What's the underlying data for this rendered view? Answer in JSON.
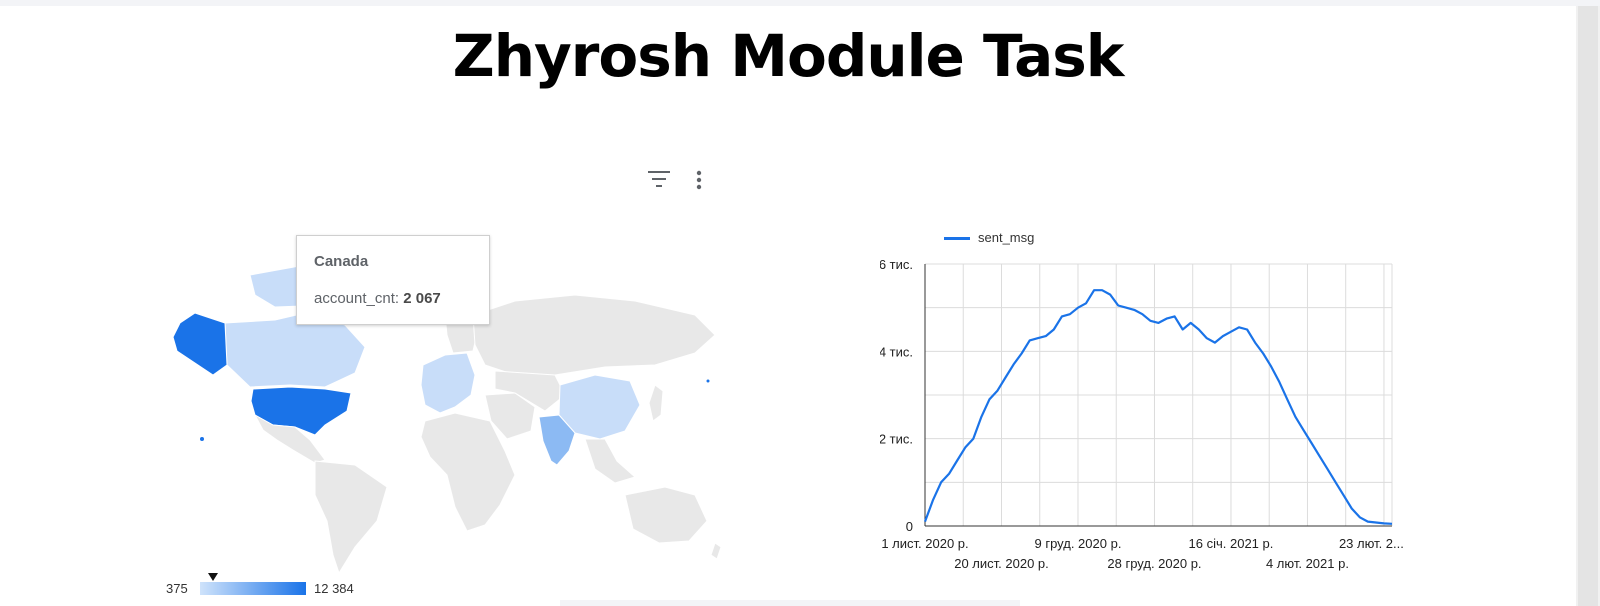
{
  "page": {
    "title": "Zhyrosh Module Task"
  },
  "toolbar": {
    "filter_icon": "filter-icon",
    "more_icon": "more-vert-icon"
  },
  "map": {
    "tooltip": {
      "country": "Canada",
      "metric_label": "account_cnt:",
      "metric_value": "2 067"
    },
    "legend": {
      "min": "375",
      "max": "12 384",
      "marker_value_fraction": 0.14
    },
    "colors": {
      "high": "#1a73e8",
      "mid": "#8cbaf3",
      "low": "#c8ddf9",
      "none": "#e8e8e8"
    },
    "shaded_countries": [
      "United States",
      "Canada",
      "India",
      "China",
      "Europe",
      "Greenland"
    ]
  },
  "chart_data": {
    "type": "line",
    "title": "",
    "xlabel": "",
    "ylabel": "",
    "ylim": [
      0,
      6000
    ],
    "y_ticks": [
      {
        "value": 0,
        "label": "0"
      },
      {
        "value": 2000,
        "label": "2 тис."
      },
      {
        "value": 4000,
        "label": "4 тис."
      },
      {
        "value": 6000,
        "label": "6 тис."
      }
    ],
    "x_ticks": [
      {
        "day": 0,
        "label": "1 лист. 2020 р.",
        "row": 0
      },
      {
        "day": 19,
        "label": "20 лист. 2020 р.",
        "row": 1
      },
      {
        "day": 38,
        "label": "9 груд. 2020 р.",
        "row": 0
      },
      {
        "day": 57,
        "label": "28 груд. 2020 р.",
        "row": 1
      },
      {
        "day": 76,
        "label": "16 січ. 2021 р.",
        "row": 0
      },
      {
        "day": 95,
        "label": "4 лют. 2021 р.",
        "row": 1
      },
      {
        "day": 114,
        "label": "23 лют. 2...",
        "row": 0
      }
    ],
    "series": [
      {
        "name": "sent_msg",
        "color": "#1a73e8",
        "x": [
          0,
          2,
          4,
          6,
          8,
          10,
          12,
          14,
          16,
          18,
          20,
          22,
          24,
          26,
          28,
          30,
          32,
          34,
          36,
          38,
          40,
          42,
          44,
          46,
          48,
          50,
          52,
          54,
          56,
          58,
          60,
          62,
          64,
          66,
          68,
          70,
          72,
          74,
          76,
          78,
          80,
          82,
          84,
          86,
          88,
          90,
          92,
          94,
          96,
          98,
          100,
          102,
          104,
          106,
          108,
          110,
          112,
          114,
          116
        ],
        "values": [
          100,
          600,
          1000,
          1200,
          1500,
          1800,
          2000,
          2500,
          2900,
          3100,
          3400,
          3700,
          3950,
          4250,
          4300,
          4350,
          4500,
          4800,
          4850,
          5000,
          5100,
          5400,
          5400,
          5300,
          5050,
          5000,
          4950,
          4850,
          4700,
          4650,
          4750,
          4800,
          4500,
          4650,
          4500,
          4300,
          4200,
          4350,
          4450,
          4550,
          4500,
          4200,
          3950,
          3650,
          3300,
          2900,
          2500,
          2200,
          1900,
          1600,
          1300,
          1000,
          700,
          400,
          200,
          100,
          80,
          60,
          50
        ]
      }
    ]
  }
}
